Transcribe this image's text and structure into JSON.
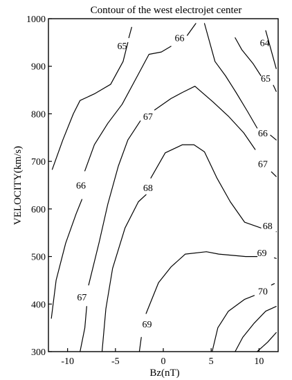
{
  "chart_data": {
    "type": "contour",
    "title": "Contour of the west electrojet center",
    "xlabel": "Bz(nT)",
    "ylabel": "VELOCITY(km/s)",
    "xlim": [
      -12,
      12
    ],
    "ylim": [
      300,
      1000
    ],
    "xticks": [
      -10,
      -5,
      0,
      5,
      10
    ],
    "yticks": [
      300,
      400,
      500,
      600,
      700,
      800,
      900,
      1000
    ],
    "grid": false,
    "levels": [
      {
        "level": "64",
        "segments": [
          [
            [
              10.7,
              975
            ],
            [
              11.8,
              895
            ]
          ]
        ],
        "labels": [
          {
            "text": "64",
            "x": 10.6,
            "y": 950
          }
        ]
      },
      {
        "level": "65",
        "segments": [
          [
            [
              -11.6,
              683
            ],
            [
              -10.5,
              745
            ],
            [
              -9.4,
              800
            ],
            [
              -8.7,
              828
            ],
            [
              -7.2,
              842
            ],
            [
              -5.5,
              862
            ],
            [
              -4.2,
              910
            ],
            [
              -3.7,
              950
            ]
          ],
          [
            [
              -3.6,
              960
            ],
            [
              -3.3,
              982
            ]
          ],
          [
            [
              7.5,
              960
            ],
            [
              8.2,
              935
            ],
            [
              9.4,
              905
            ],
            [
              10.2,
              880
            ]
          ],
          [
            [
              11.5,
              860
            ],
            [
              11.8,
              847
            ]
          ]
        ],
        "labels": [
          {
            "text": "65",
            "x": -4.3,
            "y": 943
          },
          {
            "text": "65",
            "x": 10.7,
            "y": 875
          }
        ]
      },
      {
        "level": "66",
        "segments": [
          [
            [
              -11.7,
              370
            ],
            [
              -11.2,
              450
            ],
            [
              -10.2,
              528
            ],
            [
              -9.1,
              590
            ],
            [
              -8.5,
              620
            ]
          ],
          [
            [
              -8.2,
              680
            ],
            [
              -7.2,
              735
            ],
            [
              -5.8,
              780
            ],
            [
              -4.3,
              820
            ],
            [
              -2.7,
              880
            ],
            [
              -1.5,
              925
            ],
            [
              -0.2,
              930
            ],
            [
              0.8,
              942
            ]
          ],
          [
            [
              2.5,
              965
            ],
            [
              3.4,
              990
            ]
          ],
          [
            [
              4.3,
              990
            ],
            [
              5.4,
              910
            ],
            [
              6.5,
              880
            ],
            [
              7.6,
              845
            ],
            [
              8.8,
              805
            ],
            [
              9.8,
              770
            ]
          ],
          [
            [
              11.2,
              755
            ],
            [
              11.8,
              745
            ]
          ]
        ],
        "labels": [
          {
            "text": "66",
            "x": -8.6,
            "y": 650
          },
          {
            "text": "66",
            "x": 1.7,
            "y": 960
          },
          {
            "text": "66",
            "x": 10.4,
            "y": 760
          }
        ]
      },
      {
        "level": "67",
        "segments": [
          [
            [
              -8.7,
              300
            ],
            [
              -8.2,
              350
            ],
            [
              -8.0,
              395
            ]
          ],
          [
            [
              -7.8,
              440
            ],
            [
              -6.7,
              530
            ],
            [
              -5.8,
              610
            ],
            [
              -4.7,
              690
            ],
            [
              -3.7,
              745
            ],
            [
              -2.4,
              785
            ]
          ],
          [
            [
              -0.9,
              808
            ],
            [
              0.8,
              832
            ],
            [
              2.0,
              845
            ],
            [
              3.3,
              858
            ],
            [
              5.2,
              825
            ],
            [
              6.8,
              795
            ],
            [
              8.4,
              760
            ],
            [
              9.6,
              725
            ]
          ],
          [
            [
              11.3,
              678
            ],
            [
              11.8,
              668
            ]
          ]
        ],
        "labels": [
          {
            "text": "67",
            "x": -8.5,
            "y": 415
          },
          {
            "text": "67",
            "x": -1.6,
            "y": 795
          },
          {
            "text": "67",
            "x": 10.4,
            "y": 695
          }
        ]
      },
      {
        "level": "68",
        "segments": [
          [
            [
              -6.4,
              300
            ],
            [
              -6.0,
              390
            ],
            [
              -5.3,
              475
            ],
            [
              -4.0,
              560
            ],
            [
              -2.6,
              615
            ],
            [
              -1.8,
              630
            ]
          ],
          [
            [
              -1.3,
              665
            ],
            [
              0.2,
              718
            ],
            [
              2.0,
              735
            ],
            [
              3.2,
              735
            ],
            [
              4.3,
              720
            ],
            [
              5.6,
              665
            ],
            [
              7.0,
              615
            ],
            [
              8.5,
              572
            ],
            [
              10.2,
              560
            ]
          ],
          [
            [
              11.8,
              552
            ]
          ]
        ],
        "labels": [
          {
            "text": "68",
            "x": -1.6,
            "y": 645
          },
          {
            "text": "68",
            "x": 10.9,
            "y": 565
          }
        ]
      },
      {
        "level": "69",
        "segments": [
          [
            [
              -2.5,
              300
            ],
            [
              -2.3,
              330
            ]
          ],
          [
            [
              -1.8,
              380
            ],
            [
              -0.5,
              445
            ],
            [
              0.8,
              478
            ],
            [
              2.3,
              505
            ],
            [
              4.5,
              510
            ],
            [
              5.8,
              505
            ],
            [
              8.6,
              500
            ],
            [
              9.8,
              500
            ]
          ],
          [
            [
              11.6,
              497
            ],
            [
              11.8,
              496
            ]
          ]
        ],
        "labels": [
          {
            "text": "69",
            "x": -1.7,
            "y": 358
          },
          {
            "text": "69",
            "x": 10.3,
            "y": 508
          }
        ]
      },
      {
        "level": "70",
        "segments": [
          [
            [
              5.1,
              300
            ],
            [
              5.7,
              350
            ],
            [
              6.8,
              385
            ],
            [
              8.5,
              410
            ],
            [
              9.5,
              418
            ]
          ],
          [
            [
              11.3,
              440
            ],
            [
              11.6,
              443
            ]
          ]
        ],
        "labels": [
          {
            "text": "70",
            "x": 10.4,
            "y": 427
          }
        ]
      },
      {
        "level": "",
        "segments": [
          [
            [
              7.5,
              300
            ],
            [
              8.3,
              330
            ],
            [
              9.5,
              360
            ],
            [
              10.7,
              385
            ],
            [
              11.8,
              395
            ]
          ]
        ],
        "labels": []
      },
      {
        "level": "",
        "segments": [
          [
            [
              9.8,
              300
            ],
            [
              10.9,
              320
            ],
            [
              11.8,
              340
            ]
          ]
        ],
        "labels": []
      }
    ]
  }
}
